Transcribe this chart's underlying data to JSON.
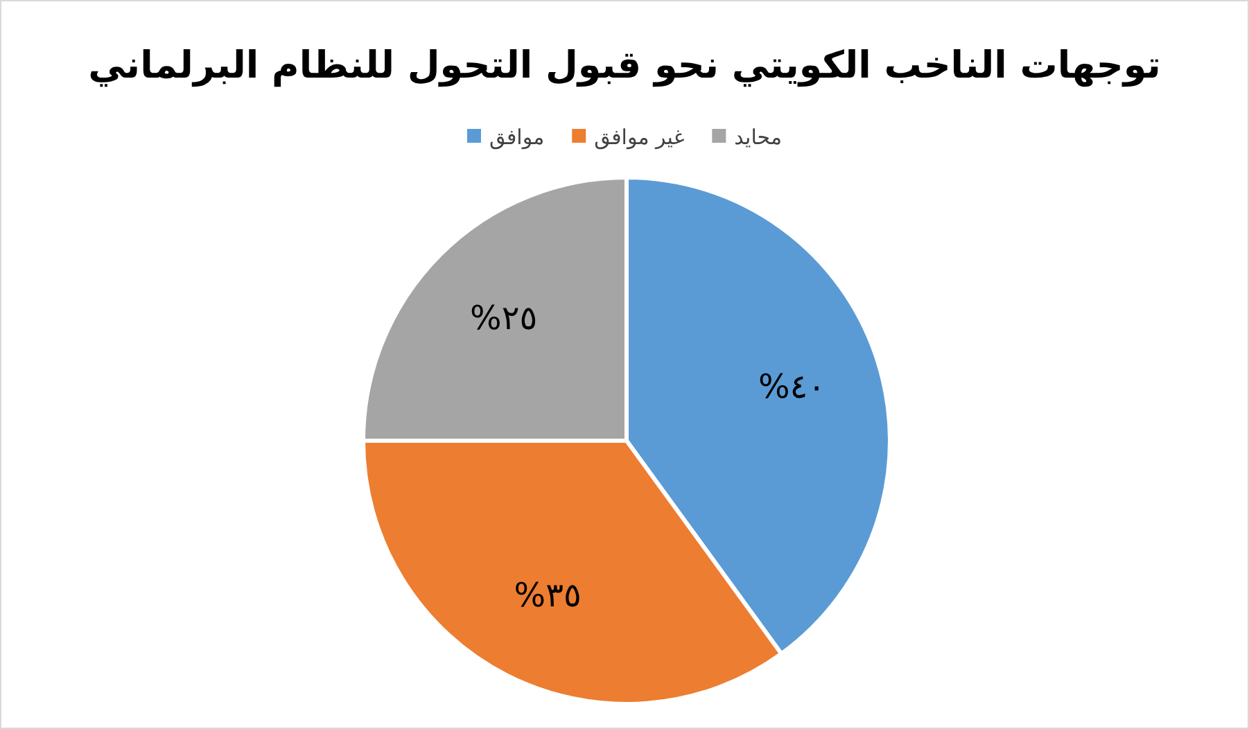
{
  "chart_data": {
    "type": "pie",
    "title": "توجهات الناخب الكويتي نحو قبول التحول للنظام البرلماني",
    "categories": [
      "موافق",
      "غير موافق",
      "محايد"
    ],
    "values": [
      40,
      35,
      25
    ],
    "colors": [
      "#5b9bd5",
      "#ed7d31",
      "#a5a5a5"
    ],
    "value_labels": [
      "٤٠%",
      "٣٥%",
      "٢٥%"
    ],
    "legend": "top"
  }
}
